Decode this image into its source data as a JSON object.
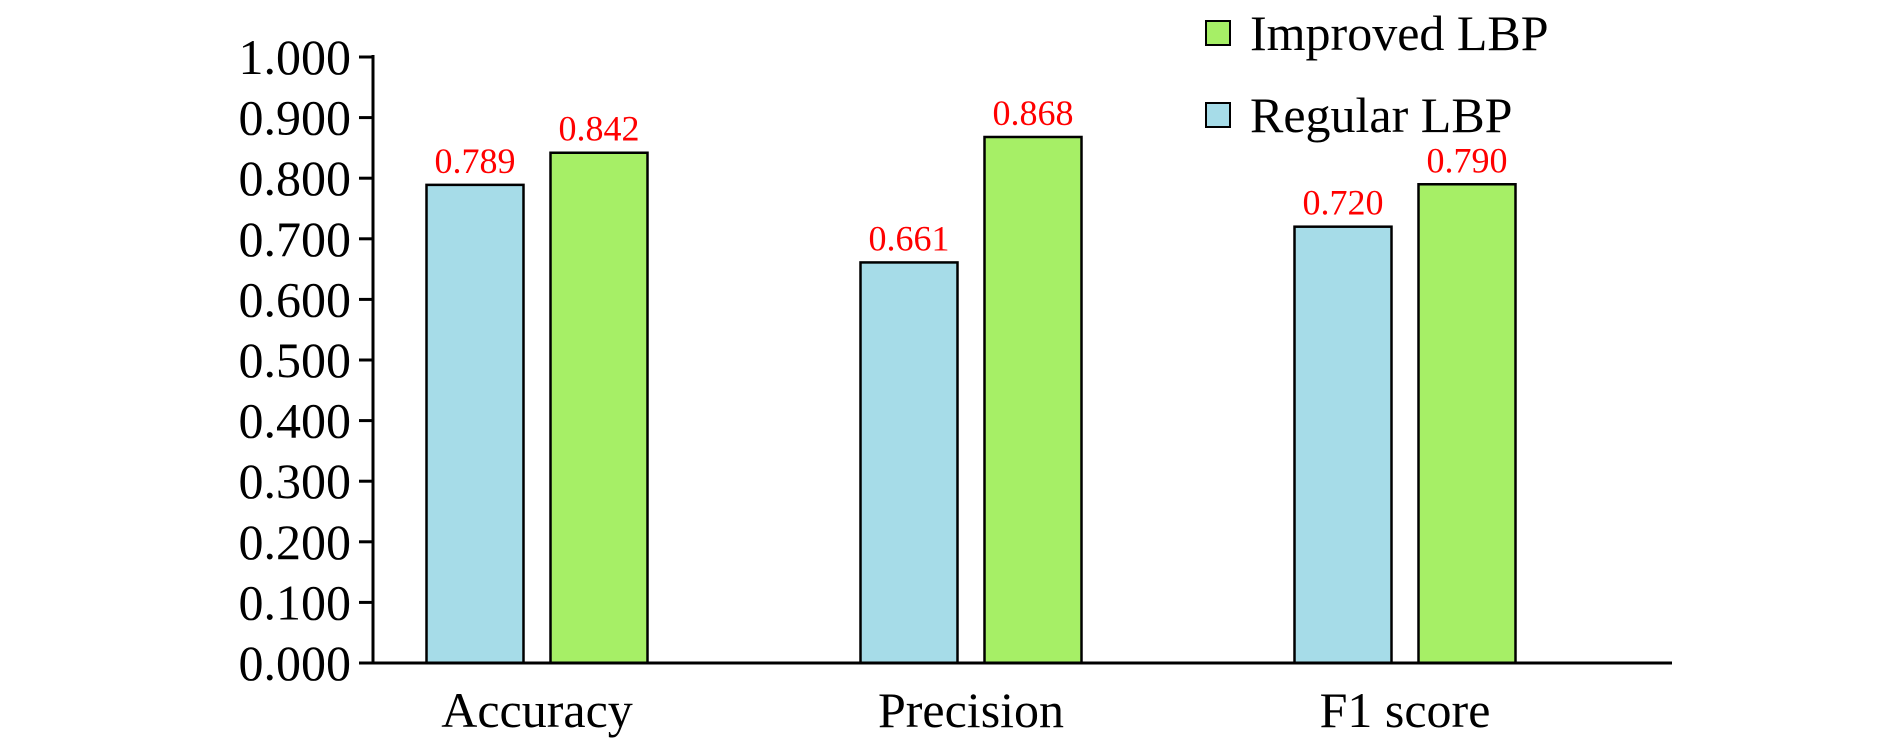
{
  "chart_data": {
    "type": "bar",
    "title": "",
    "xlabel": "",
    "ylabel": "",
    "categories": [
      "Accuracy",
      "Precision",
      "F1 score"
    ],
    "series": [
      {
        "name": "Regular LBP",
        "values": [
          0.789,
          0.661,
          0.72
        ],
        "labels": [
          "0.789",
          "0.661",
          "0.720"
        ],
        "color": "#a6dce8"
      },
      {
        "name": "Improved LBP",
        "values": [
          0.842,
          0.868,
          0.79
        ],
        "labels": [
          "0.842",
          "0.868",
          "0.790"
        ],
        "color": "#a6ef66"
      }
    ],
    "ylim": [
      0,
      1
    ],
    "yticks": [
      0,
      0.1,
      0.2,
      0.3,
      0.4,
      0.5,
      0.6,
      0.7,
      0.8,
      0.9,
      1.0
    ],
    "ytick_labels": [
      "0.000",
      "0.100",
      "0.200",
      "0.300",
      "0.400",
      "0.500",
      "0.600",
      "0.700",
      "0.800",
      "0.900",
      "1.000"
    ],
    "legend": {
      "placement": "top-right",
      "entries": [
        "Improved LBP",
        "Regular LBP"
      ],
      "colors": [
        "#a6ef66",
        "#a6dce8"
      ]
    },
    "grid": false,
    "data_label_color": "#ff0000"
  }
}
